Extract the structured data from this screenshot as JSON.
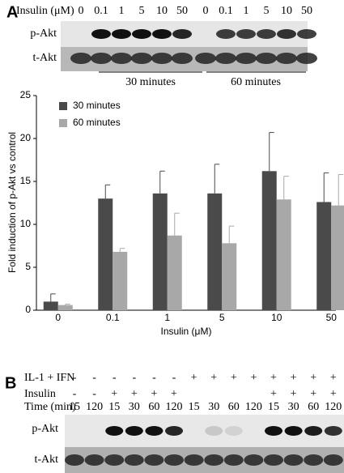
{
  "panel_a": {
    "label": "A",
    "header": "Insulin (μM)",
    "lanes": [
      "0",
      "0.1",
      "1",
      "5",
      "10",
      "50",
      "0",
      "0.1",
      "1",
      "5",
      "10",
      "50"
    ],
    "blots": [
      "p-Akt",
      "t-Akt"
    ],
    "groups": [
      "30 minutes",
      "60 minutes"
    ]
  },
  "chart_data": {
    "type": "bar",
    "categories": [
      "0",
      "0.1",
      "1",
      "5",
      "10",
      "50"
    ],
    "series": [
      {
        "name": "30 minutes",
        "color": "#4a4a4a",
        "values": [
          1.0,
          13.0,
          13.6,
          13.6,
          16.2,
          12.6
        ],
        "errors": [
          0.9,
          1.6,
          2.6,
          3.4,
          4.5,
          3.4
        ]
      },
      {
        "name": "60 minutes",
        "color": "#a8a8a8",
        "values": [
          0.6,
          6.8,
          8.7,
          7.8,
          12.9,
          12.2
        ],
        "errors": [
          0.1,
          0.4,
          2.6,
          2.0,
          2.7,
          3.6
        ]
      }
    ],
    "ylim": [
      0,
      25
    ],
    "yticks": [
      0,
      5,
      10,
      15,
      20,
      25
    ],
    "ylabel": "Fold induction of p-Akt vs control",
    "xlabel": "Insulin (μM)",
    "legend": "upper left"
  },
  "panel_b": {
    "label": "B",
    "blots": [
      "p-Akt",
      "t-Akt"
    ],
    "rows": [
      {
        "label": "IL-1 + IFN",
        "values": [
          "-",
          "-",
          "-",
          "-",
          "-",
          "-",
          "+",
          "+",
          "+",
          "+",
          "+",
          "+",
          "+",
          "+"
        ]
      },
      {
        "label": "Insulin",
        "values": [
          "-",
          "-",
          "+",
          "+",
          "+",
          "+",
          null,
          null,
          null,
          null,
          "+",
          "+",
          "+",
          "+"
        ]
      },
      {
        "label": "Time (min)",
        "values": [
          "15",
          "120",
          "15",
          "30",
          "60",
          "120",
          "15",
          "30",
          "60",
          "120",
          "15",
          "30",
          "60",
          "120"
        ]
      }
    ]
  }
}
